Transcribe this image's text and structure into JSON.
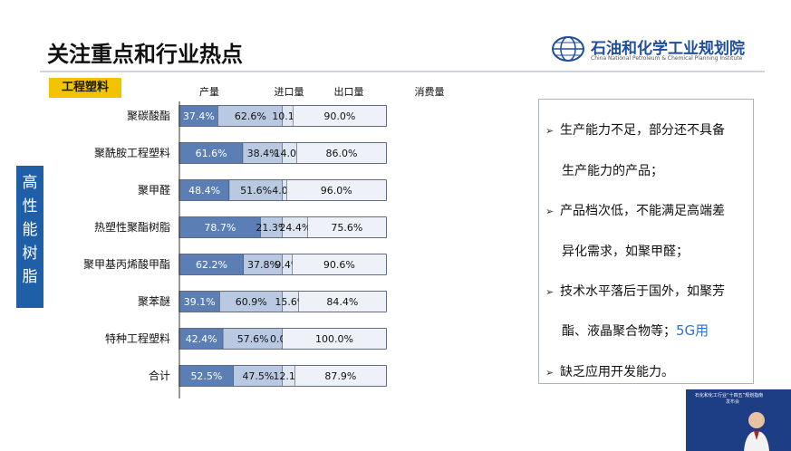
{
  "header": {
    "title": "关注重点和行业热点",
    "org_name": "石油和化学工业规划院",
    "org_name_en": "China National Petroleum & Chemical Planning Institute"
  },
  "tag_label": "工程塑料",
  "side_label": [
    "高",
    "性",
    "能",
    "树",
    "脂"
  ],
  "chart_data": {
    "type": "bar",
    "orientation": "horizontal",
    "stacked": true,
    "column_headers": [
      "产量",
      "进口量",
      "出口量",
      "消费量"
    ],
    "categories": [
      "聚碳酸酯",
      "聚酰胺工程塑料",
      "聚甲醛",
      "热塑性聚酯树脂",
      "聚甲基丙烯酸甲酯",
      "聚苯醚",
      "特种工程塑料",
      "合计"
    ],
    "series": [
      {
        "values": [
          37.4,
          61.6,
          48.4,
          78.7,
          62.2,
          39.1,
          42.4,
          52.5
        ],
        "color": "#5b7fb4"
      },
      {
        "values": [
          62.6,
          38.4,
          51.6,
          21.3,
          37.8,
          60.9,
          57.6,
          47.5
        ],
        "color": "#b9c9e2"
      },
      {
        "values": [
          10.1,
          14.0,
          4.0,
          24.4,
          9.4,
          15.6,
          0.0,
          12.1
        ],
        "color": "#dfe7f2"
      },
      {
        "values": [
          90.0,
          86.0,
          96.0,
          75.6,
          90.6,
          84.4,
          100.0,
          87.9
        ],
        "color": "#eef2f8"
      }
    ],
    "grid": false,
    "legend": "none"
  },
  "bullets": [
    {
      "lines": [
        "生产能力不足，部分还不具备",
        "生产能力的产品；"
      ]
    },
    {
      "lines": [
        "产品档次低，不能满足高端差",
        "异化需求，如聚甲醛；"
      ]
    },
    {
      "lines": [
        "技术水平落后于国外，如聚芳",
        "酯、液晶聚合物等；"
      ],
      "note": "5G用"
    },
    {
      "lines": [
        "缺乏应用开发能力。"
      ]
    }
  ],
  "video_thumbnail": {
    "heading": "石化和化工行业“十四五”规划指南",
    "sub": "发布会"
  }
}
